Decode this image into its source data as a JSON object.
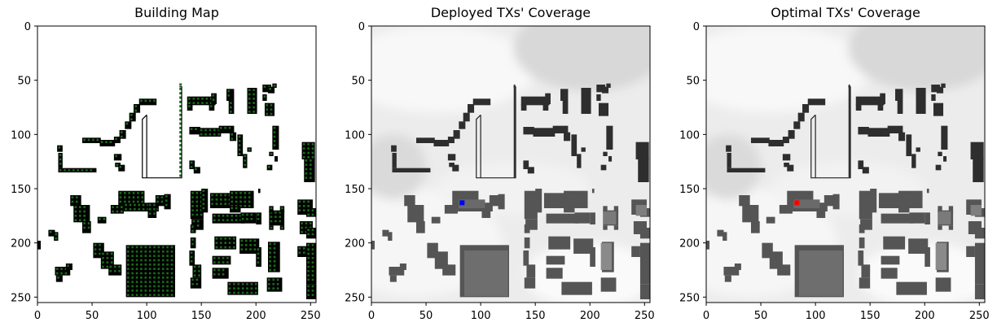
{
  "chart_data": [
    {
      "type": "heatmap",
      "title": "Building Map",
      "xlim": [
        0,
        255
      ],
      "ylim": [
        0,
        255
      ],
      "xticks": [
        0,
        50,
        100,
        150,
        200,
        250
      ],
      "yticks": [
        0,
        50,
        100,
        150,
        200,
        250
      ],
      "background": "#ffffff",
      "building_color": "#000000",
      "candidate_marker_color": "#1a6b1a"
    },
    {
      "type": "heatmap",
      "title": "Deployed TXs' Coverage",
      "xlim": [
        0,
        255
      ],
      "ylim": [
        0,
        255
      ],
      "xticks": [
        0,
        50,
        100,
        150,
        200,
        250
      ],
      "yticks": [
        0,
        50,
        100,
        150,
        200,
        250
      ],
      "colormap": "gray",
      "tx_marker": {
        "x": 83,
        "y": 163,
        "color": "#0000ff"
      }
    },
    {
      "type": "heatmap",
      "title": "Optimal TXs' Coverage",
      "xlim": [
        0,
        255
      ],
      "ylim": [
        0,
        255
      ],
      "xticks": [
        0,
        50,
        100,
        150,
        200,
        250
      ],
      "yticks": [
        0,
        50,
        100,
        150,
        200,
        250
      ],
      "colormap": "gray",
      "tx_marker": {
        "x": 83,
        "y": 163,
        "color": "#ff0000"
      }
    }
  ]
}
